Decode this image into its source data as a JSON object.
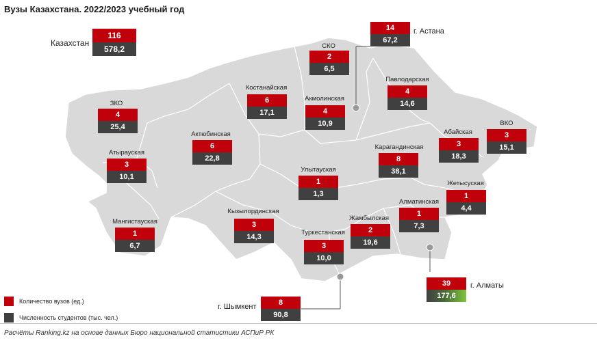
{
  "title": "Вузы Казахстана. 2022/2023 учебный год",
  "country": {
    "name": "Казахстан",
    "universities": "116",
    "students": "578,2"
  },
  "regions": [
    {
      "id": "zko",
      "name": "ЗКО",
      "universities": "4",
      "students": "25,4"
    },
    {
      "id": "atyrau",
      "name": "Атырауская",
      "universities": "3",
      "students": "10,1"
    },
    {
      "id": "mangistau",
      "name": "Мангистауская",
      "universities": "1",
      "students": "6,7"
    },
    {
      "id": "aktobe",
      "name": "Актюбинская",
      "universities": "6",
      "students": "22,8"
    },
    {
      "id": "kostanay",
      "name": "Костанайская",
      "universities": "6",
      "students": "17,1"
    },
    {
      "id": "sko",
      "name": "СКО",
      "universities": "2",
      "students": "6,5"
    },
    {
      "id": "akmola",
      "name": "Акмолинская",
      "universities": "4",
      "students": "10,9"
    },
    {
      "id": "pavlodar",
      "name": "Павлодарская",
      "universities": "4",
      "students": "14,6"
    },
    {
      "id": "abai",
      "name": "Абайская",
      "universities": "3",
      "students": "18,3"
    },
    {
      "id": "vko",
      "name": "ВКО",
      "universities": "3",
      "students": "15,1"
    },
    {
      "id": "karaganda",
      "name": "Карагандинская",
      "universities": "8",
      "students": "38,1"
    },
    {
      "id": "ulytau",
      "name": "Улытауская",
      "universities": "1",
      "students": "1,3"
    },
    {
      "id": "kyzylorda",
      "name": "Кызылординская",
      "universities": "3",
      "students": "14,3"
    },
    {
      "id": "turkestan",
      "name": "Туркестанская",
      "universities": "3",
      "students": "10,0"
    },
    {
      "id": "zhambyl",
      "name": "Жамбылская",
      "universities": "2",
      "students": "19,6"
    },
    {
      "id": "almaty-obl",
      "name": "Алматинская",
      "universities": "1",
      "students": "7,3"
    },
    {
      "id": "zhetysu",
      "name": "Жетысуская",
      "universities": "1",
      "students": "4,4"
    }
  ],
  "cities": [
    {
      "id": "astana",
      "name": "г. Астана",
      "universities": "14",
      "students": "67,2"
    },
    {
      "id": "almaty",
      "name": "г. Алматы",
      "universities": "39",
      "students": "177,6"
    },
    {
      "id": "shymkent",
      "name": "г. Шымкент",
      "universities": "8",
      "students": "90,8"
    }
  ],
  "legend": {
    "universities_label": "Количество вузов (ед.)",
    "students_label": "Численность студентов (тыс. чел.)",
    "universities_color": "#c0000b",
    "students_color": "#404040"
  },
  "source": "Расчёты Ranking.kz на основе данных Бюро национальной статистики АСПиР РК"
}
